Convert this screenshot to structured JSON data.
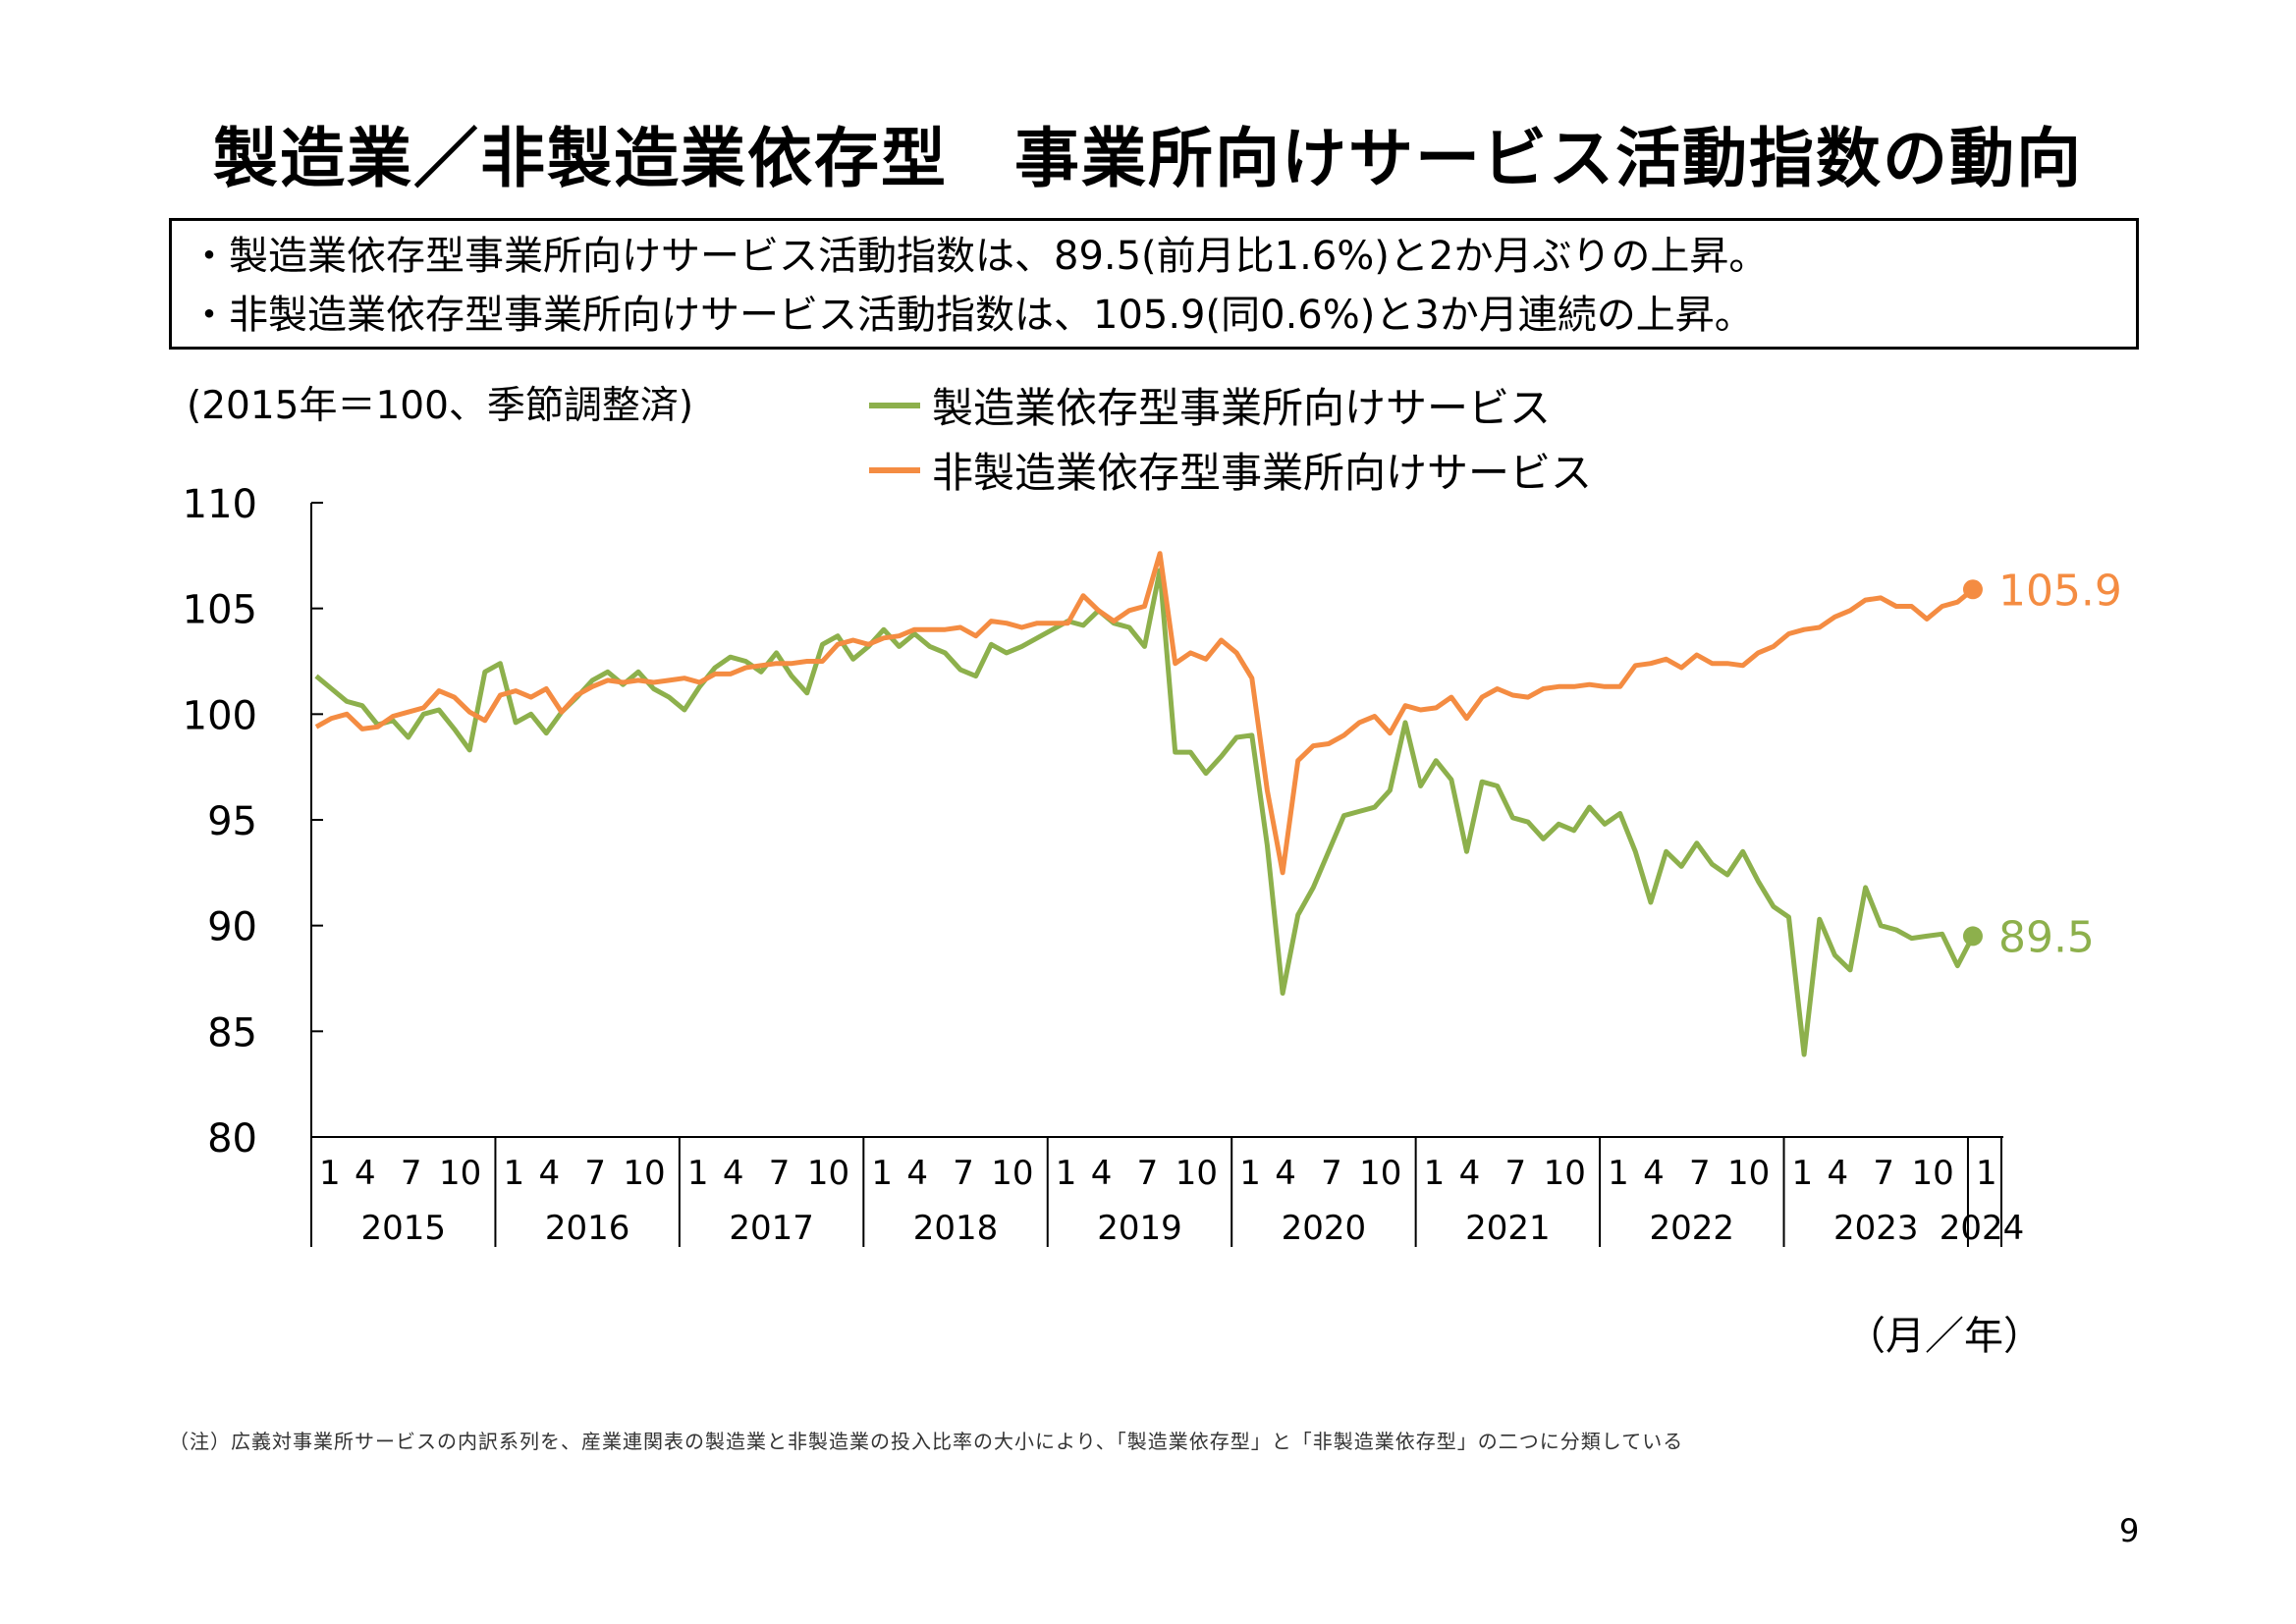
{
  "title": "製造業／非製造業依存型　事業所向けサービス活動指数の動向",
  "summary": [
    "・製造業依存型事業所向けサービス活動指数は、89.5(前月比1.6%)と2か月ぶりの上昇。",
    "・非製造業依存型事業所向けサービス活動指数は、105.9(同0.6%)と3か月連続の上昇。"
  ],
  "unit_note": "(2015年＝100、季節調整済)",
  "axis_unit": "（月／年）",
  "note": "（注）広義対事業所サービスの内訳系列を、産業連関表の製造業と非製造業の投入比率の大小により、「製造業依存型」と「非製造業依存型」の二つに分類している",
  "page_number": "9",
  "colors": {
    "manufacturing": "#8DB04C",
    "non_manufacturing": "#F48C42"
  },
  "chart_data": {
    "type": "line",
    "ylim": [
      80,
      110
    ],
    "yticks": [
      80,
      85,
      90,
      95,
      100,
      105,
      110
    ],
    "month_tick_labels": [
      "1",
      "4",
      "7",
      "10"
    ],
    "years": [
      "2015",
      "2016",
      "2017",
      "2018",
      "2019",
      "2020",
      "2021",
      "2022",
      "2023",
      "2024"
    ],
    "x_start": "2015-01",
    "x_end": "2024-01",
    "grid": false,
    "legend_position": "top",
    "series": [
      {
        "name": "製造業依存型事業所向けサービス",
        "color": "#8DB04C",
        "end_label": "89.5",
        "values": [
          101.8,
          101.2,
          100.6,
          100.4,
          99.5,
          99.7,
          98.9,
          100.0,
          100.2,
          99.3,
          98.3,
          102.0,
          102.4,
          99.6,
          100.0,
          99.1,
          100.1,
          100.8,
          101.6,
          102.0,
          101.4,
          102.0,
          101.2,
          100.8,
          100.2,
          101.3,
          102.2,
          102.7,
          102.5,
          102.0,
          102.9,
          101.8,
          101.0,
          103.3,
          103.7,
          102.6,
          103.2,
          104.0,
          103.2,
          103.8,
          103.2,
          102.9,
          102.1,
          101.8,
          103.3,
          102.9,
          103.2,
          103.6,
          104.0,
          104.4,
          104.2,
          104.9,
          104.3,
          104.1,
          103.2,
          106.8,
          98.2,
          98.2,
          97.2,
          98.0,
          98.9,
          99.0,
          93.8,
          86.8,
          90.5,
          91.8,
          93.5,
          95.2,
          95.4,
          95.6,
          96.4,
          99.6,
          96.6,
          97.8,
          96.9,
          93.5,
          96.8,
          96.6,
          95.1,
          94.9,
          94.1,
          94.8,
          94.5,
          95.6,
          94.8,
          95.3,
          93.5,
          91.1,
          93.5,
          92.8,
          93.9,
          92.9,
          92.4,
          93.5,
          92.1,
          90.9,
          90.4,
          83.9,
          90.3,
          88.6,
          87.9,
          91.8,
          90.0,
          89.8,
          89.4,
          89.5,
          89.6,
          88.1,
          89.5
        ]
      },
      {
        "name": "非製造業依存型事業所向けサービス",
        "color": "#F48C42",
        "end_label": "105.9",
        "values": [
          99.4,
          99.8,
          100.0,
          99.3,
          99.4,
          99.9,
          100.1,
          100.3,
          101.1,
          100.8,
          100.1,
          99.7,
          100.9,
          101.1,
          100.8,
          101.2,
          100.1,
          100.9,
          101.3,
          101.6,
          101.5,
          101.6,
          101.5,
          101.6,
          101.7,
          101.5,
          101.9,
          101.9,
          102.2,
          102.3,
          102.4,
          102.4,
          102.5,
          102.5,
          103.3,
          103.5,
          103.3,
          103.6,
          103.7,
          104.0,
          104.0,
          104.0,
          104.1,
          103.7,
          104.4,
          104.3,
          104.1,
          104.3,
          104.3,
          104.3,
          105.6,
          104.9,
          104.4,
          104.9,
          105.1,
          107.6,
          102.4,
          102.9,
          102.6,
          103.5,
          102.9,
          101.7,
          96.4,
          92.5,
          97.8,
          98.5,
          98.6,
          99.0,
          99.6,
          99.9,
          99.1,
          100.4,
          100.2,
          100.3,
          100.8,
          99.8,
          100.8,
          101.2,
          100.9,
          100.8,
          101.2,
          101.3,
          101.3,
          101.4,
          101.3,
          101.3,
          102.3,
          102.4,
          102.6,
          102.2,
          102.8,
          102.4,
          102.4,
          102.3,
          102.9,
          103.2,
          103.8,
          104.0,
          104.1,
          104.6,
          104.9,
          105.4,
          105.5,
          105.1,
          105.1,
          104.5,
          105.1,
          105.3,
          105.9
        ]
      }
    ]
  }
}
